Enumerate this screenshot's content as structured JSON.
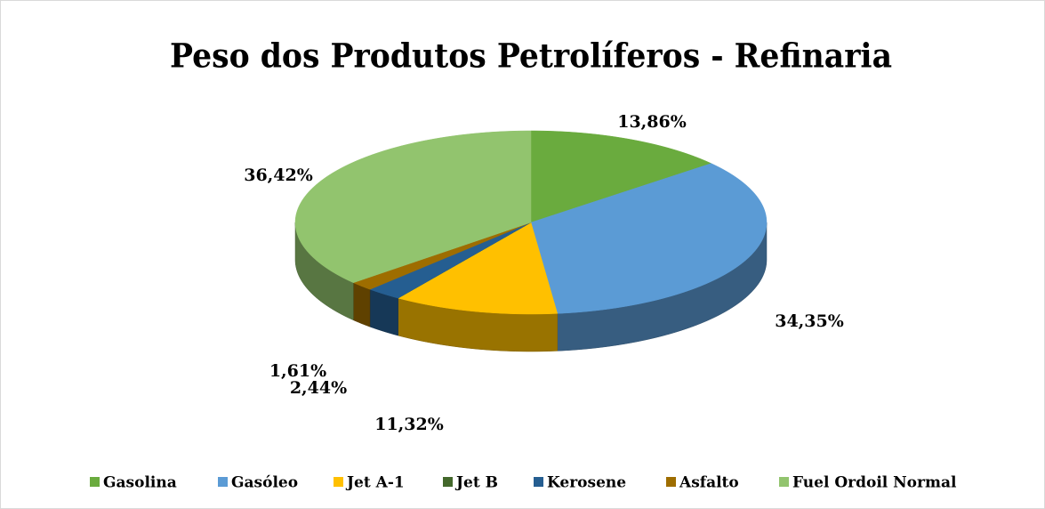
{
  "chart_data": {
    "type": "pie",
    "title": "Peso dos Produtos Petrolíferos - Refinaria",
    "categories": [
      "Gasolina",
      "Gasóleo",
      "Jet A-1",
      "Jet B",
      "Kerosene",
      "Asfalto",
      "Fuel Ordoil Normal"
    ],
    "values": [
      13.86,
      34.35,
      11.32,
      0,
      2.44,
      1.61,
      36.42
    ],
    "value_labels": [
      "13,86%",
      "34,35%",
      "11,32%",
      null,
      "2,44%",
      "1,61%",
      "36,42%"
    ],
    "colors": [
      "#6aab3e",
      "#5b9bd5",
      "#ffc000",
      "#43682b",
      "#255e91",
      "#9e6d00",
      "#92c46e"
    ],
    "legend": "bottom"
  }
}
